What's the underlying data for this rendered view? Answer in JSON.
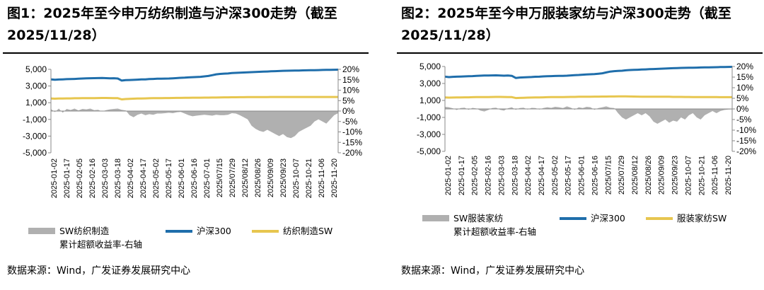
{
  "panels": [
    {
      "title": "图1：2025年至今申万纺织制造与沪深300走势（截至2025/11/28）",
      "source": "数据来源：Wind，广发证券发展研究中心"
    },
    {
      "title": "图2：2025年至今申万服装家纺与沪深300走势（截至2025/11/28）",
      "source": "数据来源：Wind，广发证券发展研究中心"
    }
  ],
  "colors": {
    "index_line": "#1f6eab",
    "sector_line": "#e7c64f",
    "excess_area": "#b0b0b0",
    "axis": "#888888"
  },
  "chart_data": [
    {
      "type": "line+area",
      "title": "2025年至今申万纺织制造与沪深300走势",
      "yleft_ticks": [
        "5,000",
        "3,000",
        "1,000",
        "-1,000",
        "-3,000",
        "-5,000"
      ],
      "yleft_range": [
        -5000,
        5000
      ],
      "yright_ticks": [
        "20%",
        "15%",
        "10%",
        "5%",
        "0%",
        "-5%",
        "-10%",
        "-15%",
        "-20%"
      ],
      "yright_range": [
        -0.2,
        0.2
      ],
      "x_ticks": [
        "2025-01-02",
        "2025-01-17",
        "2025-02-05",
        "2025-02-16",
        "2025-03-03",
        "2025-03-18",
        "2025-04-02",
        "2025-04-17",
        "2025-05-02",
        "2025-05-17",
        "2025-06-01",
        "2025-06-16",
        "2025-07-01",
        "2025/07/15",
        "2025/07/29",
        "2025/08/12",
        "2025/08/26",
        "2025/09/09",
        "2025/09/23",
        "2025-10-07",
        "2025-10-21",
        "2025-11-06",
        "2025-11-20"
      ],
      "series": [
        {
          "name": "SW纺织制造累计超额收益率-右轴",
          "legend_line1": "SW纺织制造",
          "legend_line2": "累计超额收益率-右轴",
          "kind": "area",
          "axis": "right",
          "values": [
            0.01,
            -0.005,
            0.012,
            -0.008,
            0.01,
            0.005,
            0.012,
            0.003,
            0.01,
            0.008,
            0.012,
            0.004,
            0.006,
            -0.002,
            0.004,
            0.008,
            0.01,
            0.012,
            0.006,
            0.003,
            -0.02,
            -0.03,
            -0.018,
            -0.012,
            -0.02,
            -0.015,
            -0.018,
            -0.012,
            -0.012,
            -0.01,
            -0.008,
            -0.01,
            -0.006,
            -0.004,
            -0.012,
            -0.02,
            -0.025,
            -0.022,
            -0.02,
            -0.018,
            -0.02,
            -0.022,
            -0.018,
            -0.02,
            -0.02,
            -0.018,
            -0.01,
            -0.012,
            -0.02,
            -0.03,
            -0.04,
            -0.07,
            -0.085,
            -0.095,
            -0.1,
            -0.09,
            -0.1,
            -0.11,
            -0.12,
            -0.11,
            -0.125,
            -0.13,
            -0.12,
            -0.1,
            -0.09,
            -0.08,
            -0.07,
            -0.05,
            -0.04,
            -0.05,
            -0.06,
            -0.04,
            -0.02,
            -0.01
          ]
        },
        {
          "name": "沪深300",
          "kind": "line",
          "axis": "left",
          "values": [
            3800,
            3750,
            3780,
            3800,
            3820,
            3830,
            3850,
            3870,
            3900,
            3920,
            3930,
            3940,
            3950,
            3960,
            3940,
            3920,
            3930,
            3900,
            3650,
            3700,
            3720,
            3740,
            3760,
            3790,
            3800,
            3830,
            3850,
            3870,
            3880,
            3890,
            3900,
            3920,
            3950,
            3980,
            4000,
            4030,
            4060,
            4080,
            4100,
            4150,
            4200,
            4300,
            4400,
            4450,
            4480,
            4500,
            4550,
            4580,
            4600,
            4620,
            4640,
            4660,
            4680,
            4700,
            4720,
            4740,
            4760,
            4780,
            4800,
            4820,
            4830,
            4840,
            4850,
            4860,
            4870,
            4880,
            4890,
            4900,
            4910,
            4920,
            4930,
            4940,
            4950,
            4960
          ]
        },
        {
          "name": "纺织制造SW",
          "kind": "line",
          "axis": "left",
          "values": [
            1500,
            1480,
            1500,
            1510,
            1520,
            1520,
            1530,
            1530,
            1540,
            1540,
            1550,
            1550,
            1560,
            1570,
            1570,
            1560,
            1550,
            1540,
            1400,
            1440,
            1460,
            1480,
            1500,
            1510,
            1520,
            1530,
            1540,
            1550,
            1550,
            1560,
            1560,
            1570,
            1580,
            1580,
            1590,
            1590,
            1600,
            1600,
            1600,
            1610,
            1610,
            1620,
            1620,
            1630,
            1640,
            1640,
            1650,
            1650,
            1660,
            1660,
            1670,
            1670,
            1670,
            1680,
            1680,
            1680,
            1690,
            1690,
            1690,
            1690,
            1690,
            1690,
            1690,
            1690,
            1690,
            1690,
            1690,
            1690,
            1690,
            1690,
            1690,
            1690,
            1690,
            1690
          ]
        }
      ]
    },
    {
      "type": "line+area",
      "title": "2025年至今申万服装家纺与沪深300走势",
      "yleft_ticks": [
        "5,000",
        "3,000",
        "1,000",
        "-1,000",
        "-3,000",
        "-5,000"
      ],
      "yleft_range": [
        -5000,
        5000
      ],
      "yright_ticks": [
        "20%",
        "15%",
        "10%",
        "5%",
        "0%",
        "-5%",
        "-10%",
        "-15%",
        "-20%"
      ],
      "yright_range": [
        -0.2,
        0.2
      ],
      "x_ticks": [
        "2025-01-02",
        "2025-01-17",
        "2025-02-05",
        "2025-02-16",
        "2025-03-03",
        "2025-03-18",
        "2025-04-02",
        "2025-04-17",
        "2025-05-02",
        "2025-05-17",
        "2025-06-01",
        "2025-06-16",
        "2025/07/15",
        "2025/07/29",
        "2025/08/12",
        "2025/08/26",
        "2025/09/09",
        "2025/09/23",
        "2025-10-07",
        "2025-10-21",
        "2025-11-06",
        "2025-11-20"
      ],
      "series": [
        {
          "name": "SW服装家纺累计超额收益率-右轴",
          "legend_line1": "SW服装家纺",
          "legend_line2": "累计超额收益率-右轴",
          "kind": "area",
          "axis": "right",
          "values": [
            0.01,
            0.008,
            0.003,
            -0.005,
            0.004,
            0.006,
            -0.004,
            0.005,
            0.002,
            -0.008,
            -0.012,
            -0.005,
            0.004,
            0.006,
            -0.004,
            -0.008,
            0.003,
            0.008,
            -0.004,
            0.004,
            0.006,
            -0.003,
            0.005,
            0.004,
            -0.003,
            0.004,
            0.008,
            0.005,
            0.01,
            0.008,
            0.004,
            0.012,
            0.006,
            -0.004,
            0.008,
            0.004,
            0.01,
            0.008,
            -0.004,
            0.004,
            0.008,
            0.012,
            0.006,
            0.004,
            -0.02,
            -0.04,
            -0.05,
            -0.04,
            -0.03,
            -0.02,
            -0.03,
            -0.02,
            -0.035,
            -0.06,
            -0.07,
            -0.06,
            -0.05,
            -0.065,
            -0.055,
            -0.06,
            -0.04,
            -0.05,
            -0.03,
            -0.02,
            -0.04,
            -0.05,
            -0.03,
            -0.02,
            -0.01,
            -0.02,
            -0.01,
            -0.005,
            -0.003,
            -0.002
          ]
        },
        {
          "name": "沪深300",
          "kind": "line",
          "axis": "left",
          "values": [
            3800,
            3750,
            3780,
            3800,
            3820,
            3830,
            3850,
            3870,
            3900,
            3920,
            3930,
            3940,
            3950,
            3960,
            3940,
            3920,
            3930,
            3900,
            3650,
            3700,
            3720,
            3740,
            3760,
            3790,
            3800,
            3830,
            3850,
            3870,
            3880,
            3890,
            3900,
            3920,
            3950,
            3980,
            4000,
            4030,
            4060,
            4080,
            4100,
            4150,
            4200,
            4300,
            4400,
            4450,
            4480,
            4500,
            4550,
            4580,
            4600,
            4620,
            4640,
            4660,
            4680,
            4700,
            4720,
            4740,
            4760,
            4780,
            4800,
            4820,
            4830,
            4840,
            4850,
            4860,
            4870,
            4880,
            4890,
            4900,
            4910,
            4920,
            4930,
            4940,
            4950,
            4960
          ]
        },
        {
          "name": "服装家纺SW",
          "kind": "line",
          "axis": "left",
          "values": [
            1350,
            1330,
            1340,
            1350,
            1360,
            1370,
            1370,
            1380,
            1390,
            1390,
            1400,
            1400,
            1410,
            1420,
            1420,
            1410,
            1400,
            1390,
            1280,
            1300,
            1320,
            1330,
            1340,
            1350,
            1360,
            1370,
            1380,
            1390,
            1390,
            1400,
            1400,
            1410,
            1420,
            1420,
            1430,
            1430,
            1440,
            1440,
            1450,
            1450,
            1460,
            1460,
            1470,
            1470,
            1480,
            1480,
            1480,
            1470,
            1460,
            1450,
            1440,
            1440,
            1430,
            1430,
            1440,
            1440,
            1430,
            1430,
            1420,
            1420,
            1420,
            1410,
            1410,
            1400,
            1400,
            1400,
            1390,
            1390,
            1390,
            1390,
            1380,
            1380,
            1380,
            1380
          ]
        }
      ]
    }
  ]
}
